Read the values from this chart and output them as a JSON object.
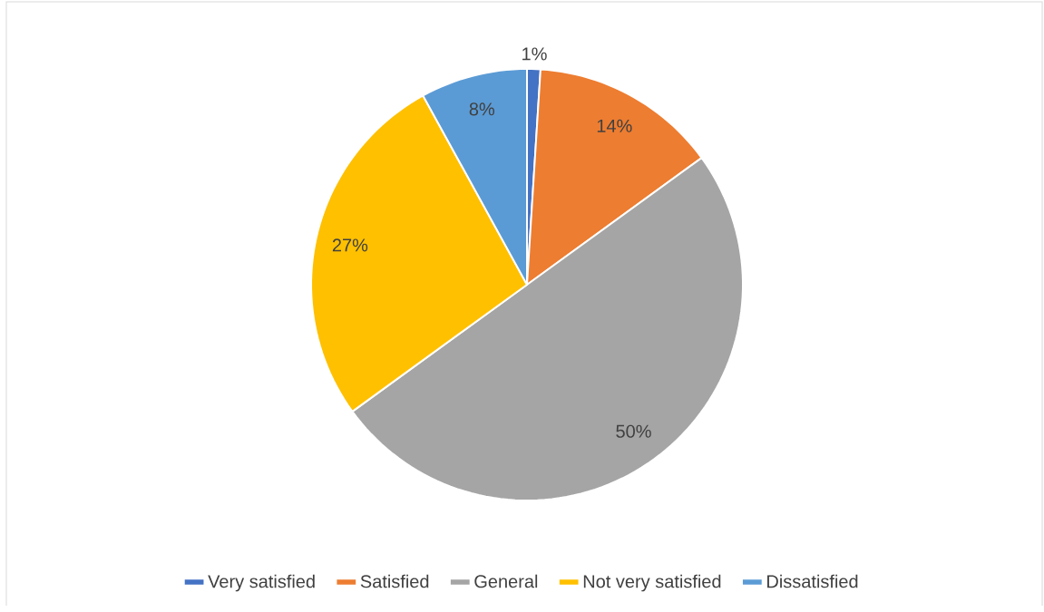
{
  "chart_data": {
    "type": "pie",
    "categories": [
      "Very satisfied",
      "Satisfied",
      "General",
      "Not very satisfied",
      "Dissatisfied"
    ],
    "values": [
      1,
      14,
      50,
      27,
      8
    ],
    "colors": [
      "#4472c4",
      "#ed7d31",
      "#a5a5a5",
      "#ffc000",
      "#5b9bd5"
    ],
    "value_labels": [
      "1%",
      "14%",
      "50%",
      "27%",
      "8%"
    ],
    "legend": "bottom"
  }
}
